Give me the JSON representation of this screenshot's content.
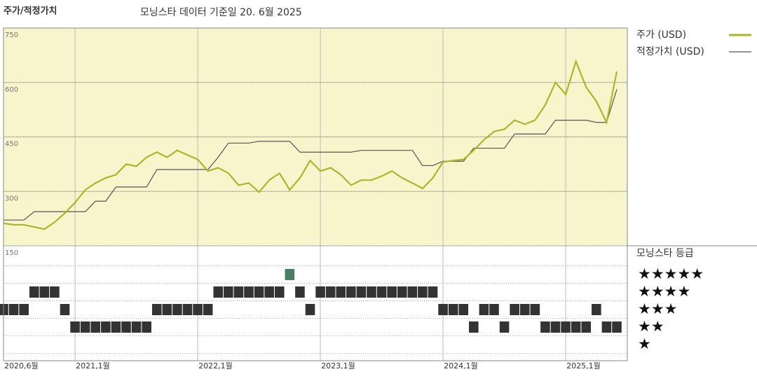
{
  "chart_data": {
    "type": "line",
    "title": "주가/적정가치",
    "subtitle": "모닝스타 데이터 기준일 20. 6월 2025",
    "x": [
      "2020-06",
      "2020-07",
      "2020-08",
      "2020-09",
      "2020-10",
      "2020-11",
      "2020-12",
      "2021-01",
      "2021-02",
      "2021-03",
      "2021-04",
      "2021-05",
      "2021-06",
      "2021-07",
      "2021-08",
      "2021-09",
      "2021-10",
      "2021-11",
      "2021-12",
      "2022-01",
      "2022-02",
      "2022-03",
      "2022-04",
      "2022-05",
      "2022-06",
      "2022-07",
      "2022-08",
      "2022-09",
      "2022-10",
      "2022-11",
      "2022-12",
      "2023-01",
      "2023-02",
      "2023-03",
      "2023-04",
      "2023-05",
      "2023-06",
      "2023-07",
      "2023-08",
      "2023-09",
      "2023-10",
      "2023-11",
      "2023-12",
      "2024-01",
      "2024-02",
      "2024-03",
      "2024-04",
      "2024-05",
      "2024-06",
      "2024-07",
      "2024-08",
      "2024-09",
      "2024-10",
      "2024-11",
      "2024-12",
      "2025-01",
      "2025-02",
      "2025-03",
      "2025-04",
      "2025-05",
      "2025-06"
    ],
    "series": [
      {
        "name": "주가 (USD)",
        "color": "#a9b82a",
        "values": [
          212,
          208,
          208,
          202,
          196,
          215,
          240,
          269,
          304,
          323,
          337,
          346,
          375,
          369,
          394,
          408,
          394,
          413,
          400,
          388,
          356,
          365,
          350,
          317,
          323,
          298,
          331,
          350,
          304,
          337,
          385,
          356,
          365,
          346,
          317,
          331,
          331,
          342,
          356,
          337,
          323,
          308,
          337,
          381,
          385,
          388,
          413,
          442,
          465,
          471,
          496,
          485,
          496,
          538,
          600,
          567,
          658,
          587,
          548,
          490,
          630
        ]
      },
      {
        "name": "적정가치 (USD)",
        "color": "#555555",
        "values": [
          221,
          221,
          221,
          244,
          244,
          244,
          244,
          244,
          244,
          273,
          273,
          312,
          312,
          312,
          312,
          360,
          360,
          360,
          360,
          360,
          360,
          394,
          433,
          433,
          433,
          438,
          438,
          438,
          438,
          408,
          408,
          408,
          408,
          408,
          408,
          413,
          413,
          413,
          413,
          413,
          413,
          371,
          371,
          383,
          383,
          383,
          419,
          419,
          419,
          419,
          458,
          458,
          458,
          458,
          496,
          496,
          496,
          496,
          490,
          490,
          581
        ]
      }
    ],
    "ratings": [
      3,
      3,
      3,
      4,
      4,
      4,
      3,
      2,
      2,
      2,
      2,
      2,
      2,
      2,
      2,
      3,
      3,
      3,
      3,
      3,
      3,
      4,
      4,
      4,
      4,
      4,
      4,
      4,
      5,
      4,
      3,
      4,
      4,
      4,
      4,
      4,
      4,
      4,
      4,
      4,
      4,
      4,
      4,
      3,
      3,
      3,
      2,
      3,
      3,
      2,
      3,
      3,
      3,
      2,
      2,
      2,
      2,
      2,
      3,
      2,
      2
    ],
    "rating_title": "모닝스타 등급",
    "rating_rows": [
      "★★★★★",
      "★★★★",
      "★★★",
      "★★",
      "★"
    ],
    "rating_color": "#333333",
    "top_rating_color": "#4d7d62",
    "ylim": [
      150,
      750
    ],
    "yticks": [
      150,
      300,
      450,
      600,
      750
    ],
    "xticks": [
      {
        "value": "2020-06",
        "label": "2020,6월"
      },
      {
        "value": "2021-01",
        "label": "2021,1월"
      },
      {
        "value": "2022-01",
        "label": "2022,1월"
      },
      {
        "value": "2023-01",
        "label": "2023,1월"
      },
      {
        "value": "2024-01",
        "label": "2024,1월"
      },
      {
        "value": "2025-01",
        "label": "2025,1월"
      }
    ],
    "background": "#f8f4cc"
  }
}
